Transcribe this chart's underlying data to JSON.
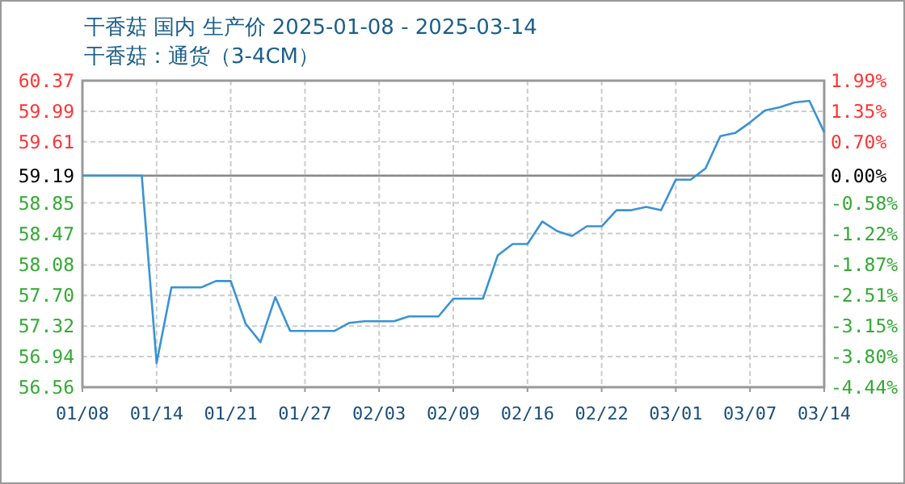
{
  "chart_data": {
    "type": "line",
    "title": "干香菇 国内 生产价 2025-01-08 - 2025-03-14",
    "subtitle": "干香菇：通货（3-4CM）",
    "categories": [
      "01/08",
      null,
      null,
      null,
      null,
      "01/14",
      null,
      null,
      null,
      null,
      "01/21",
      null,
      null,
      null,
      null,
      "01/27",
      null,
      null,
      null,
      null,
      "02/03",
      null,
      null,
      null,
      null,
      "02/09",
      null,
      null,
      null,
      null,
      "02/16",
      null,
      null,
      null,
      null,
      "02/22",
      null,
      null,
      null,
      null,
      "03/01",
      null,
      null,
      null,
      null,
      "03/07",
      null,
      null,
      null,
      null,
      "03/14"
    ],
    "series": [
      {
        "color": "#3a92d4",
        "values": [
          59.19,
          59.19,
          59.19,
          59.19,
          59.19,
          56.86,
          57.8,
          57.8,
          57.8,
          57.88,
          57.88,
          57.35,
          57.12,
          57.68,
          57.26,
          57.26,
          57.26,
          57.26,
          57.36,
          57.38,
          57.38,
          57.38,
          57.44,
          57.44,
          57.44,
          57.66,
          57.66,
          57.66,
          58.2,
          58.34,
          58.34,
          58.62,
          58.5,
          58.44,
          58.56,
          58.56,
          58.76,
          58.76,
          58.8,
          58.76,
          59.14,
          59.14,
          59.28,
          59.68,
          59.72,
          59.85,
          60.0,
          60.04,
          60.1,
          60.12,
          59.73
        ]
      }
    ],
    "ylim": [
      56.56,
      60.37
    ],
    "yticks": [
      56.56,
      56.94,
      57.32,
      {
        "value": 57.7,
        "label": "57.70"
      },
      58.08,
      58.47,
      58.85,
      59.19,
      59.61,
      59.99,
      60.37
    ],
    "y2lim": [
      -4.44,
      1.99
    ],
    "y2ticks": [
      {
        "value": -4.44,
        "label": "-4.44%"
      },
      {
        "value": -3.8,
        "label": "-3.80%"
      },
      {
        "value": -3.15,
        "label": "-3.15%"
      },
      {
        "value": -2.51,
        "label": "-2.51%"
      },
      {
        "value": -1.87,
        "label": "-1.87%"
      },
      {
        "value": -1.22,
        "label": "-1.22%"
      },
      {
        "value": -0.58,
        "label": "-0.58%"
      },
      {
        "value": 0,
        "label": "0.00%"
      },
      {
        "value": 0.7,
        "label": "0.70%"
      },
      {
        "value": 1.35,
        "label": "1.35%"
      },
      {
        "value": 1.99,
        "label": "1.99%"
      }
    ],
    "ref_lines": [
      {
        "axis": "y",
        "value": 59.19,
        "color": "#888888"
      }
    ],
    "grid": true,
    "marker": "none",
    "line_style": "solid"
  }
}
